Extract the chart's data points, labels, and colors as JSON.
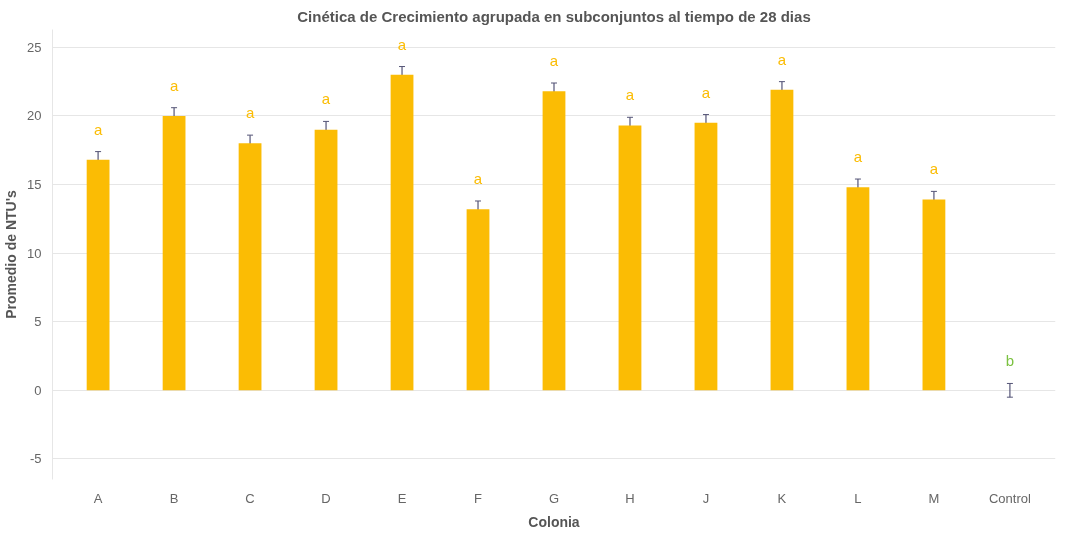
{
  "chart_data": {
    "type": "bar",
    "title": "Cinética de Crecimiento agrupada en subconjuntos al tiempo de 28 dias",
    "xlabel": "Colonia",
    "ylabel": "Promedio de NTU's",
    "categories": [
      "A",
      "B",
      "C",
      "D",
      "E",
      "F",
      "G",
      "H",
      "J",
      "K",
      "L",
      "M",
      "Control"
    ],
    "values": [
      16.8,
      20.0,
      18.0,
      19.0,
      23.0,
      13.2,
      21.8,
      19.3,
      19.5,
      21.9,
      14.8,
      13.9,
      0
    ],
    "errors": [
      0.6,
      0.6,
      0.6,
      0.6,
      0.6,
      0.6,
      0.6,
      0.6,
      0.6,
      0.6,
      0.6,
      0.6,
      0.5
    ],
    "colors": [
      "#fbbc04",
      "#fbbc04",
      "#fbbc04",
      "#fbbc04",
      "#fbbc04",
      "#fbbc04",
      "#fbbc04",
      "#fbbc04",
      "#fbbc04",
      "#fbbc04",
      "#fbbc04",
      "#fbbc04",
      "#7cc242"
    ],
    "value_labels": [
      "a",
      "a",
      "a",
      "a",
      "a",
      "a",
      "a",
      "a",
      "a",
      "a",
      "a",
      "a",
      "b"
    ],
    "ylim": [
      -6.5,
      26.3
    ],
    "yticks": [
      -5,
      0,
      5,
      10,
      15,
      20,
      25
    ],
    "grid": "y"
  }
}
